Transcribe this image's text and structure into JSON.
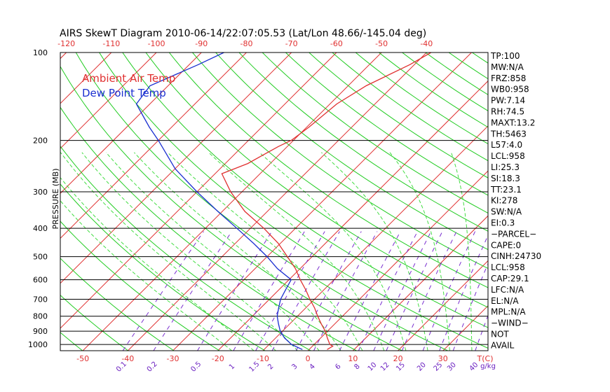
{
  "title": "AIRS SkewT Diagram 2010-06-14/22:07:05.53 (Lat/Lon 48.66/-145.04 deg)",
  "ylabel": "PRESSURE (MB)",
  "legend": [
    {
      "label": "Ambient Air Temp",
      "color": "#e03030"
    },
    {
      "label": "Dew Point Temp",
      "color": "#1a2fd0"
    }
  ],
  "colors": {
    "isotherm": "#e03030",
    "dry_adiabat": "#22cc22",
    "moist_adiabat": "#44dd44",
    "mixing_ratio": "#7a2fd0",
    "isobar": "#000000",
    "temperature": "#e03030",
    "dewpoint": "#1a2fd0"
  },
  "chart_data": {
    "type": "line",
    "yscale": "log",
    "pressure_range": [
      1050,
      100
    ],
    "temp_range_at_surface": [
      -55,
      40
    ],
    "pressure_ticks": [
      100,
      200,
      300,
      400,
      500,
      600,
      700,
      800,
      900,
      1000
    ],
    "isobars": [
      200,
      300,
      400,
      500,
      600,
      700,
      800,
      900,
      1000
    ],
    "bottom_temp_ticks": [
      -50,
      -40,
      -30,
      -20,
      -10,
      0,
      10,
      20,
      30
    ],
    "bottom_axis_unit": "T(C)",
    "top_temp_ticks": [
      -120,
      -110,
      -100,
      -90,
      -80,
      -70,
      -60,
      -50,
      -40
    ],
    "mixing_ratio_ticks": [
      "0.1",
      "0.2",
      "0.5",
      "1",
      "1.5",
      "2",
      "3",
      "4",
      "6",
      "8",
      "10",
      "12",
      "15",
      "20",
      "25",
      "30",
      "40"
    ],
    "mixing_ratio_unit": "g/kg",
    "isotherms": [
      -180,
      -170,
      -160,
      -150,
      -140,
      -130,
      -120,
      -110,
      -100,
      -90,
      -80,
      -70,
      -60,
      -50,
      -40,
      -30,
      -20,
      -10,
      0,
      10,
      20,
      30,
      40
    ],
    "dry_adiabats_theta_K": [
      210,
      220,
      230,
      240,
      250,
      260,
      270,
      280,
      290,
      300,
      310,
      320,
      330,
      340,
      350,
      360,
      370,
      380,
      390,
      400,
      410,
      420,
      430,
      440,
      450,
      460,
      470,
      480,
      490,
      500,
      510,
      520,
      530,
      540,
      550,
      560,
      580,
      600,
      620,
      640
    ],
    "moist_adiabats_C": [
      -20,
      -15,
      -10,
      -5,
      0,
      5,
      10,
      15,
      20,
      25,
      30,
      35
    ],
    "series": [
      {
        "name": "Ambient Air Temp",
        "points": [
          {
            "p": 1040,
            "t": 4.0
          },
          {
            "p": 1013,
            "t": 4.5
          },
          {
            "p": 1000,
            "t": 3.5
          },
          {
            "p": 950,
            "t": 1.5
          },
          {
            "p": 900,
            "t": -0.5
          },
          {
            "p": 850,
            "t": -3.0
          },
          {
            "p": 800,
            "t": -5.5
          },
          {
            "p": 750,
            "t": -8.0
          },
          {
            "p": 700,
            "t": -11.0
          },
          {
            "p": 650,
            "t": -14.0
          },
          {
            "p": 600,
            "t": -17.5
          },
          {
            "p": 550,
            "t": -21.0
          },
          {
            "p": 500,
            "t": -25.5
          },
          {
            "p": 450,
            "t": -30.5
          },
          {
            "p": 400,
            "t": -37.0
          },
          {
            "p": 350,
            "t": -45.0
          },
          {
            "p": 300,
            "t": -52.5
          },
          {
            "p": 260,
            "t": -58.5
          },
          {
            "p": 240,
            "t": -55.0
          },
          {
            "p": 210,
            "t": -52.0
          },
          {
            "p": 200,
            "t": -50.5
          },
          {
            "p": 180,
            "t": -49.5
          },
          {
            "p": 150,
            "t": -48.5
          },
          {
            "p": 130,
            "t": -46.0
          },
          {
            "p": 110,
            "t": -41.0
          },
          {
            "p": 100,
            "t": -39.0
          }
        ]
      },
      {
        "name": "Dew Point Temp",
        "points": [
          {
            "p": 1040,
            "t": -1.5
          },
          {
            "p": 1000,
            "t": -5.0
          },
          {
            "p": 950,
            "t": -8.0
          },
          {
            "p": 900,
            "t": -10.5
          },
          {
            "p": 850,
            "t": -12.5
          },
          {
            "p": 800,
            "t": -14.5
          },
          {
            "p": 750,
            "t": -16.0
          },
          {
            "p": 700,
            "t": -17.5
          },
          {
            "p": 650,
            "t": -18.5
          },
          {
            "p": 600,
            "t": -19.5
          },
          {
            "p": 550,
            "t": -25.0
          },
          {
            "p": 500,
            "t": -30.0
          },
          {
            "p": 450,
            "t": -36.0
          },
          {
            "p": 400,
            "t": -43.0
          },
          {
            "p": 350,
            "t": -51.0
          },
          {
            "p": 300,
            "t": -60.0
          },
          {
            "p": 250,
            "t": -70.0
          },
          {
            "p": 200,
            "t": -80.0
          },
          {
            "p": 180,
            "t": -85.0
          },
          {
            "p": 150,
            "t": -93.0
          },
          {
            "p": 130,
            "t": -94.0
          },
          {
            "p": 110,
            "t": -88.0
          },
          {
            "p": 100,
            "t": -85.0
          }
        ]
      }
    ],
    "indices": [
      "TP:100",
      "MW:N/A",
      "FRZ:858",
      "WB0:958",
      "PW:7.14",
      "RH:74.5",
      "MAXT:13.2",
      "TH:5463",
      "L57:4.0",
      "LCL:958",
      "LI:25.3",
      "SI:18.3",
      "TT:23.1",
      "KI:278",
      "SW:N/A",
      "EI:0.3",
      "−PARCEL−",
      "CAPE:0",
      "CINH:24730",
      "LCL:958",
      "CAP:29.1",
      "LFC:N/A",
      "EL:N/A",
      "MPL:N/A",
      "−WIND−",
      "NOT",
      "AVAIL"
    ]
  }
}
